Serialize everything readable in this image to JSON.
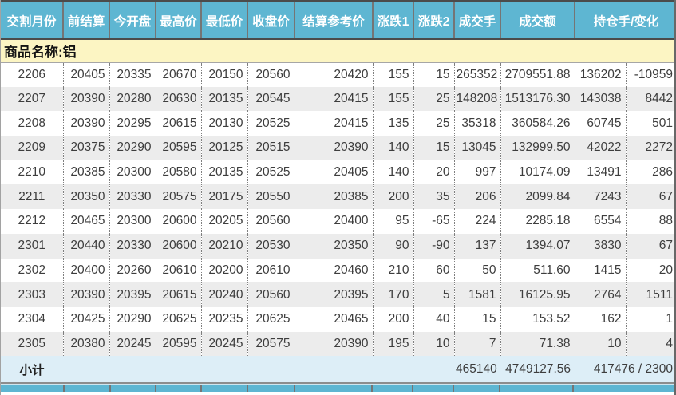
{
  "table": {
    "columns": [
      "交割月份",
      "前结算",
      "今开盘",
      "最高价",
      "最低价",
      "收盘价",
      "结算参考价",
      "涨跌1",
      "涨跌2",
      "成交手",
      "成交额",
      "持仓手/变化"
    ],
    "product_label": "商品名称:铝",
    "rows": [
      [
        "2206",
        "20405",
        "20335",
        "20670",
        "20150",
        "20560",
        "20420",
        "155",
        "15",
        "265352",
        "2709551.88",
        "136202",
        "-10959"
      ],
      [
        "2207",
        "20390",
        "20280",
        "20630",
        "20135",
        "20545",
        "20415",
        "155",
        "25",
        "148208",
        "1513176.30",
        "143038",
        "8442"
      ],
      [
        "2208",
        "20390",
        "20295",
        "20615",
        "20130",
        "20525",
        "20415",
        "135",
        "25",
        "35318",
        "360584.26",
        "60745",
        "501"
      ],
      [
        "2209",
        "20375",
        "20290",
        "20595",
        "20125",
        "20515",
        "20390",
        "140",
        "15",
        "13045",
        "132999.50",
        "42022",
        "2272"
      ],
      [
        "2210",
        "20385",
        "20300",
        "20580",
        "20135",
        "20525",
        "20405",
        "140",
        "20",
        "997",
        "10174.09",
        "13491",
        "286"
      ],
      [
        "2211",
        "20350",
        "20330",
        "20575",
        "20175",
        "20550",
        "20385",
        "200",
        "35",
        "206",
        "2099.84",
        "7243",
        "67"
      ],
      [
        "2212",
        "20465",
        "20300",
        "20600",
        "20205",
        "20560",
        "20400",
        "95",
        "-65",
        "224",
        "2285.18",
        "6554",
        "88"
      ],
      [
        "2301",
        "20440",
        "20330",
        "20600",
        "20210",
        "20530",
        "20350",
        "90",
        "-90",
        "137",
        "1394.07",
        "3830",
        "67"
      ],
      [
        "2302",
        "20400",
        "20260",
        "20610",
        "20200",
        "20610",
        "20460",
        "210",
        "60",
        "50",
        "511.60",
        "1415",
        "20"
      ],
      [
        "2303",
        "20390",
        "20395",
        "20615",
        "20240",
        "20560",
        "20395",
        "170",
        "5",
        "1581",
        "16125.95",
        "2764",
        "1511"
      ],
      [
        "2304",
        "20425",
        "20290",
        "20625",
        "20235",
        "20625",
        "20465",
        "200",
        "40",
        "15",
        "153.52",
        "162",
        "1"
      ],
      [
        "2305",
        "20380",
        "20245",
        "20595",
        "20245",
        "20575",
        "20390",
        "195",
        "10",
        "7",
        "71.38",
        "10",
        "4"
      ]
    ],
    "subtotal": {
      "label": "小计",
      "volume": "465140",
      "turnover": "4749127.56",
      "open_interest_change": "417476 / 2300"
    }
  },
  "colors": {
    "header_bg": "#5eb6d2",
    "product_row_bg": "#fcf5c3",
    "row_alt_bg": "#ececec",
    "subtotal_bg": "#ddeef7"
  }
}
